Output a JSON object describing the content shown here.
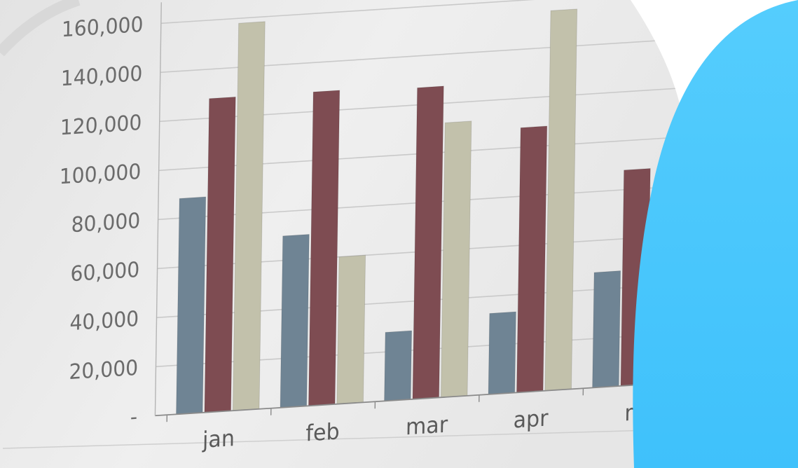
{
  "colors": {
    "series_1": "#6f8494",
    "series_2": "#7e4c52",
    "series_3": "#c2c1ab",
    "paper": "#ececec",
    "gridline": "#c9c9c9",
    "axis_text": "#6b6b6b",
    "accent_blob": "#46c4fb",
    "dot_pattern": "#2f9ff0"
  },
  "chart_data": {
    "type": "bar",
    "title": "",
    "xlabel": "",
    "ylabel": "",
    "categories": [
      "jan",
      "feb",
      "mar",
      "apr",
      "m"
    ],
    "series": [
      {
        "values": [
          88000,
          70000,
          28000,
          33000,
          47000
        ]
      },
      {
        "values": [
          128000,
          128000,
          127000,
          108000,
          88000
        ]
      },
      {
        "values": [
          158000,
          60000,
          112000,
          155000,
          null
        ]
      }
    ],
    "ylim": [
      0,
      160000
    ],
    "yticks": [
      0,
      20000,
      40000,
      60000,
      80000,
      100000,
      120000,
      140000,
      160000
    ],
    "ytick_labels": [
      "-",
      "20,000",
      "40,000",
      "60,000",
      "80,000",
      "100,000",
      "120,000",
      "140,000",
      "160,000"
    ],
    "grid": true,
    "legend": "none"
  }
}
